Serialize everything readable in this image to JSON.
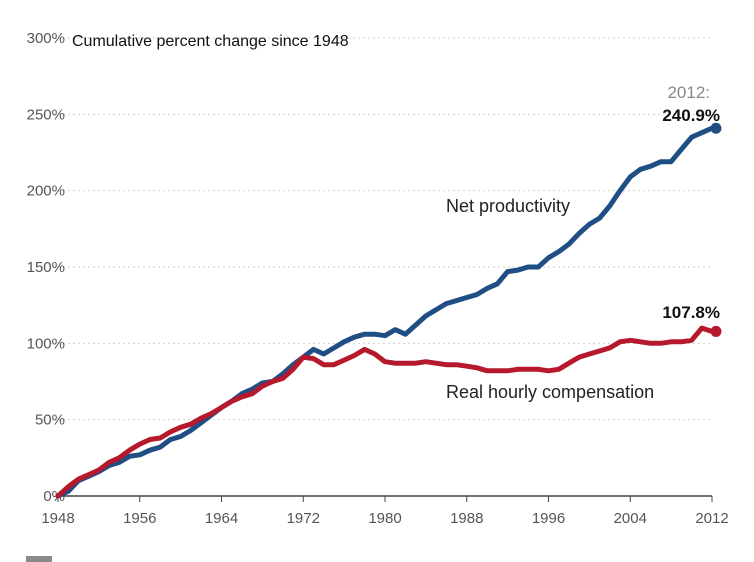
{
  "chart_data": {
    "type": "line",
    "title": "Cumulative percent change since 1948",
    "xlabel": "",
    "ylabel": "",
    "xlim": [
      1948,
      2012
    ],
    "ylim": [
      0,
      300
    ],
    "x_ticks": [
      "1948",
      "1956",
      "1964",
      "1972",
      "1980",
      "1988",
      "1996",
      "2004",
      "2012"
    ],
    "y_ticks": [
      "0%",
      "50%",
      "100%",
      "150%",
      "200%",
      "250%",
      "300%"
    ],
    "grid": "horizontal dotted",
    "series": [
      {
        "name": "Net productivity",
        "color": "#1f4e85",
        "x": [
          1948,
          1949,
          1950,
          1951,
          1952,
          1953,
          1954,
          1955,
          1956,
          1957,
          1958,
          1959,
          1960,
          1961,
          1962,
          1963,
          1964,
          1965,
          1966,
          1967,
          1968,
          1969,
          1970,
          1971,
          1972,
          1973,
          1974,
          1975,
          1976,
          1977,
          1978,
          1979,
          1980,
          1981,
          1982,
          1983,
          1984,
          1985,
          1986,
          1987,
          1988,
          1989,
          1990,
          1991,
          1992,
          1993,
          1994,
          1995,
          1996,
          1997,
          1998,
          1999,
          2000,
          2001,
          2002,
          2003,
          2004,
          2005,
          2006,
          2007,
          2008,
          2009,
          2010,
          2011,
          2012
        ],
        "values": [
          0,
          3,
          10,
          13,
          16,
          20,
          22,
          26,
          27,
          30,
          32,
          37,
          39,
          43,
          48,
          53,
          58,
          62,
          67,
          70,
          74,
          75,
          80,
          86,
          91,
          96,
          93,
          97,
          101,
          104,
          106,
          106,
          105,
          109,
          106,
          112,
          118,
          122,
          126,
          128,
          130,
          132,
          136,
          139,
          147,
          148,
          150,
          150,
          156,
          160,
          165,
          172,
          178,
          182,
          190,
          200,
          209,
          214,
          216,
          219,
          219,
          227,
          235,
          238,
          240.9
        ],
        "end_label_year": "2012:",
        "end_label_value": "240.9%"
      },
      {
        "name": "Real hourly compensation",
        "color": "#b5192b",
        "x": [
          1948,
          1949,
          1950,
          1951,
          1952,
          1953,
          1954,
          1955,
          1956,
          1957,
          1958,
          1959,
          1960,
          1961,
          1962,
          1963,
          1964,
          1965,
          1966,
          1967,
          1968,
          1969,
          1970,
          1971,
          1972,
          1973,
          1974,
          1975,
          1976,
          1977,
          1978,
          1979,
          1980,
          1981,
          1982,
          1983,
          1984,
          1985,
          1986,
          1987,
          1988,
          1989,
          1990,
          1991,
          1992,
          1993,
          1994,
          1995,
          1996,
          1997,
          1998,
          1999,
          2000,
          2001,
          2002,
          2003,
          2004,
          2005,
          2006,
          2007,
          2008,
          2009,
          2010,
          2011,
          2012
        ],
        "values": [
          0,
          6,
          11,
          14,
          17,
          22,
          25,
          30,
          34,
          37,
          38,
          42,
          45,
          47,
          51,
          54,
          58,
          62,
          65,
          67,
          72,
          75,
          77,
          83,
          91,
          90,
          86,
          86,
          89,
          92,
          96,
          93,
          88,
          87,
          87,
          87,
          88,
          87,
          86,
          86,
          85,
          84,
          82,
          82,
          82,
          83,
          83,
          83,
          82,
          83,
          87,
          91,
          93,
          95,
          97,
          101,
          102,
          101,
          100,
          100,
          101,
          101,
          102,
          110,
          107.8
        ],
        "end_label_value": "107.8%"
      }
    ]
  }
}
